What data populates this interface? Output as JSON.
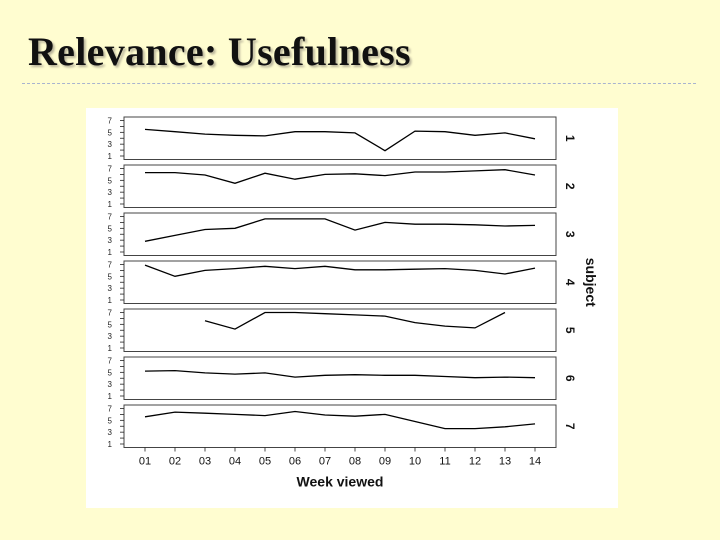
{
  "slide": {
    "title": "Relevance: Usefulness"
  },
  "colors": {
    "background": "#fffdd0",
    "line": "#000000",
    "plot_border": "#444444",
    "plot_background": "#ffffff"
  },
  "chart_data": {
    "type": "line",
    "layout": "small-multiples-stacked",
    "title": "",
    "xlabel": "Week viewed",
    "ylabel": "",
    "strip_axis_label": "subject",
    "categories": [
      "01",
      "02",
      "03",
      "04",
      "05",
      "06",
      "07",
      "08",
      "09",
      "10",
      "11",
      "12",
      "13",
      "14"
    ],
    "yticks": [
      1,
      3,
      5,
      7
    ],
    "yticks_minor": [
      2,
      4,
      6
    ],
    "ylim": [
      1,
      7
    ],
    "grid": false,
    "legend": "none",
    "series": [
      {
        "name": "1",
        "values": [
          5.5,
          5.1,
          4.7,
          4.5,
          4.4,
          5.1,
          5.1,
          4.9,
          1.9,
          5.2,
          5.1,
          4.5,
          4.9,
          3.9
        ]
      },
      {
        "name": "2",
        "values": [
          6.3,
          6.3,
          5.9,
          4.5,
          6.2,
          5.2,
          6.0,
          6.1,
          5.8,
          6.4,
          6.4,
          6.6,
          6.8,
          5.9
        ]
      },
      {
        "name": "3",
        "values": [
          2.8,
          3.8,
          4.8,
          5.0,
          6.6,
          6.6,
          6.6,
          4.7,
          6.0,
          5.7,
          5.7,
          5.6,
          5.4,
          5.5
        ]
      },
      {
        "name": "4",
        "values": [
          6.9,
          5.0,
          6.0,
          6.3,
          6.7,
          6.3,
          6.7,
          6.1,
          6.1,
          6.2,
          6.3,
          6.0,
          5.4,
          6.4
        ]
      },
      {
        "name": "5",
        "values": [
          null,
          null,
          5.6,
          4.2,
          7.0,
          7.0,
          6.8,
          6.6,
          6.4,
          5.3,
          4.7,
          4.4,
          7.0,
          null
        ]
      },
      {
        "name": "6",
        "values": [
          5.2,
          5.3,
          4.9,
          4.7,
          4.9,
          4.2,
          4.5,
          4.6,
          4.5,
          4.5,
          4.3,
          4.1,
          4.2,
          4.1
        ]
      },
      {
        "name": "7",
        "values": [
          5.6,
          6.4,
          6.2,
          6.0,
          5.8,
          6.5,
          5.9,
          5.7,
          6.0,
          4.8,
          3.6,
          3.6,
          3.9,
          4.4
        ]
      }
    ]
  }
}
